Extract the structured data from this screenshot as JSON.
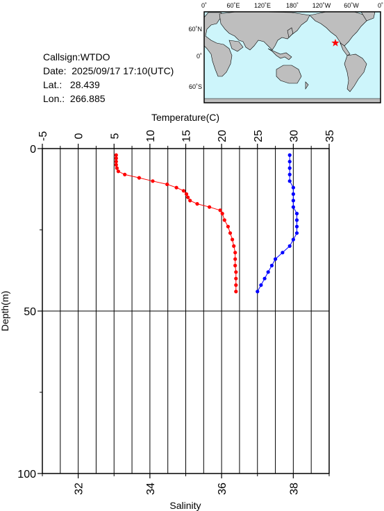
{
  "station": {
    "callsign_label": "Callsign:",
    "callsign": "WTDO",
    "date_label": "Date:",
    "date": "2025/09/17 17:10(UTC)",
    "lat_label": "Lat.:",
    "lat": "28.439",
    "lon_label": "Lon.:",
    "lon": "266.885"
  },
  "map": {
    "lon_ticks": [
      "0˚",
      "60˚E",
      "120˚E",
      "180˚",
      "120˚W",
      "60˚W",
      "0˚"
    ],
    "lat_ticks": [
      "60˚N",
      "0˚",
      "60˚S"
    ],
    "ocean_color": "#cdf5fb",
    "land_color": "#bebebe",
    "marker": "star",
    "marker_color": "#ff0000"
  },
  "chart_data": {
    "type": "line",
    "ylabel": "Depth(m)",
    "ylim": [
      0,
      100
    ],
    "yticks": [
      "0",
      "50",
      "100"
    ],
    "temperature_axis": {
      "label": "Temperature(C)",
      "range": [
        -5,
        35
      ],
      "ticks": [
        "-5",
        "0",
        "5",
        "10",
        "15",
        "20",
        "25",
        "30",
        "35"
      ],
      "color": "#ff0000"
    },
    "salinity_axis": {
      "label": "Salinity",
      "range": [
        31,
        39
      ],
      "ticks": [
        "32",
        "34",
        "36",
        "38"
      ],
      "color": "#0000ff"
    },
    "series": [
      {
        "kind": "temperature",
        "color": "#ff0000",
        "points": [
          [
            5.3,
            2
          ],
          [
            5.3,
            3
          ],
          [
            5.3,
            4
          ],
          [
            5.3,
            5
          ],
          [
            5.4,
            6
          ],
          [
            5.6,
            7
          ],
          [
            6.5,
            8
          ],
          [
            8.5,
            9
          ],
          [
            10.4,
            10
          ],
          [
            12.4,
            11
          ],
          [
            13.7,
            12
          ],
          [
            14.7,
            13
          ],
          [
            15.1,
            14
          ],
          [
            15.3,
            15
          ],
          [
            15.6,
            16
          ],
          [
            16.6,
            17
          ],
          [
            18.3,
            18
          ],
          [
            19.8,
            19
          ],
          [
            20.1,
            20
          ],
          [
            20.4,
            22
          ],
          [
            20.9,
            24
          ],
          [
            21.2,
            26
          ],
          [
            21.5,
            28
          ],
          [
            21.7,
            30
          ],
          [
            21.9,
            32
          ],
          [
            21.9,
            34
          ],
          [
            21.9,
            36
          ],
          [
            22.0,
            38
          ],
          [
            22.0,
            40
          ],
          [
            22.0,
            42
          ],
          [
            22.0,
            44
          ]
        ]
      },
      {
        "kind": "salinity",
        "color": "#0000ff",
        "points": [
          [
            37.9,
            2
          ],
          [
            37.9,
            4
          ],
          [
            37.9,
            6
          ],
          [
            37.9,
            8
          ],
          [
            37.9,
            10
          ],
          [
            38.0,
            12
          ],
          [
            38.0,
            14
          ],
          [
            38.0,
            16
          ],
          [
            38.0,
            18
          ],
          [
            38.1,
            20
          ],
          [
            38.1,
            22
          ],
          [
            38.1,
            24
          ],
          [
            38.1,
            26
          ],
          [
            38.0,
            28
          ],
          [
            37.9,
            30
          ],
          [
            37.7,
            32
          ],
          [
            37.5,
            34
          ],
          [
            37.4,
            36
          ],
          [
            37.3,
            38
          ],
          [
            37.2,
            40
          ],
          [
            37.1,
            42
          ],
          [
            37.0,
            44
          ]
        ]
      }
    ]
  }
}
